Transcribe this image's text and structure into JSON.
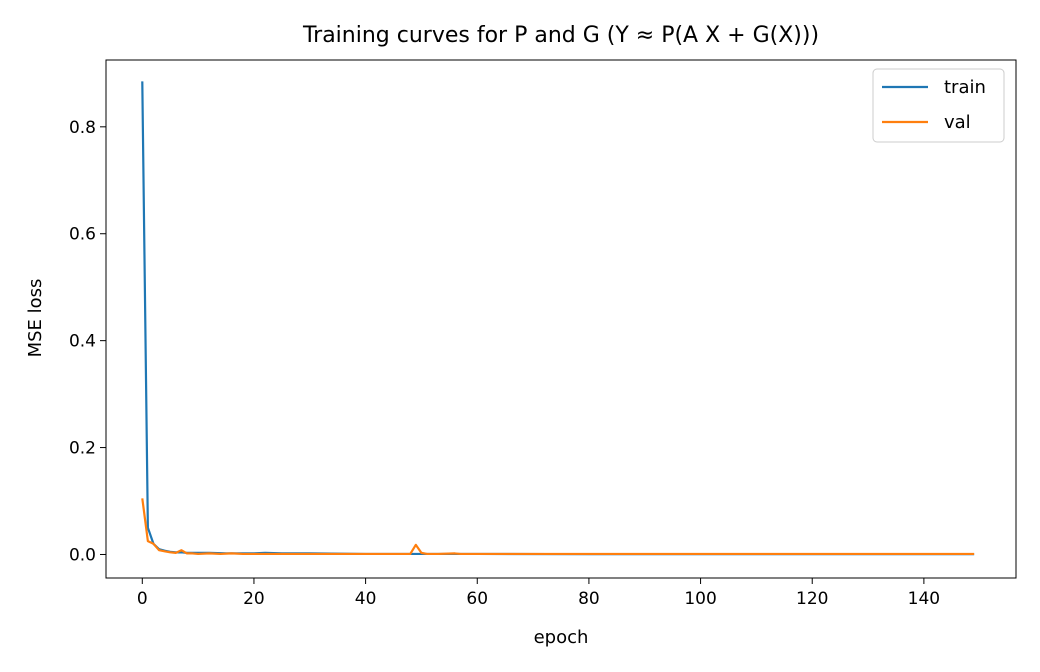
{
  "chart_data": {
    "type": "line",
    "title": "Training curves for P and G (Y ≈ P(A X + G(X)))",
    "xlabel": "epoch",
    "ylabel": "MSE loss",
    "xlim": [
      -6.5,
      156.5
    ],
    "ylim": [
      -0.044,
      0.925
    ],
    "xticks": [
      0,
      20,
      40,
      60,
      80,
      100,
      120,
      140
    ],
    "yticks": [
      0.0,
      0.2,
      0.4,
      0.6,
      0.8
    ],
    "xtick_labels": [
      "0",
      "20",
      "40",
      "60",
      "80",
      "100",
      "120",
      "140"
    ],
    "ytick_labels": [
      "0.0",
      "0.2",
      "0.4",
      "0.6",
      "0.8"
    ],
    "legend_position": "top-right",
    "grid": false,
    "series": [
      {
        "name": "train",
        "color": "#1f77b4",
        "x": [
          0,
          1,
          2,
          3,
          4,
          5,
          6,
          7,
          8,
          10,
          12,
          15,
          20,
          22,
          25,
          30,
          40,
          48,
          49,
          50,
          55,
          60,
          80,
          100,
          120,
          149
        ],
        "y": [
          0.885,
          0.05,
          0.02,
          0.01,
          0.007,
          0.005,
          0.004,
          0.004,
          0.003,
          0.003,
          0.003,
          0.002,
          0.002,
          0.003,
          0.002,
          0.002,
          0.001,
          0.001,
          0.001,
          0.001,
          0.001,
          0.001,
          0.0005,
          0.0005,
          0.0005,
          0.0005
        ]
      },
      {
        "name": "val",
        "color": "#ff7f0e",
        "x": [
          0,
          1,
          2,
          3,
          4,
          5,
          6,
          7,
          8,
          9,
          10,
          12,
          14,
          16,
          18,
          20,
          22,
          24,
          26,
          28,
          30,
          32,
          35,
          40,
          45,
          48,
          49,
          50,
          51,
          53,
          56,
          57,
          60,
          80,
          100,
          120,
          149
        ],
        "y": [
          0.105,
          0.025,
          0.02,
          0.008,
          0.006,
          0.004,
          0.003,
          0.008,
          0.002,
          0.002,
          0.001,
          0.002,
          0.001,
          0.002,
          0.001,
          0.001,
          0.001,
          0.001,
          0.001,
          0.001,
          0.001,
          0.001,
          0.001,
          0.001,
          0.001,
          0.001,
          0.018,
          0.003,
          0.001,
          0.001,
          0.002,
          0.001,
          0.001,
          0.001,
          0.001,
          0.001,
          0.001
        ]
      }
    ]
  }
}
